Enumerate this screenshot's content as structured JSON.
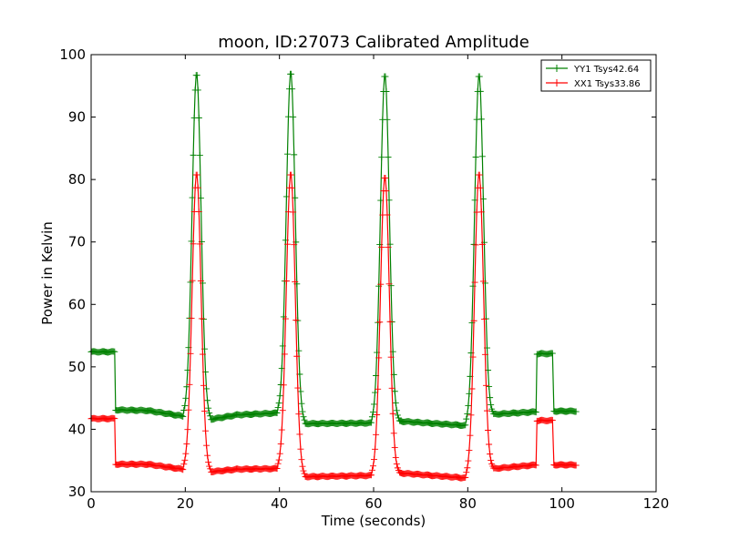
{
  "chart_data": {
    "type": "line",
    "title": "moon, ID:27073 Calibrated Amplitude",
    "xlabel": "Time (seconds)",
    "ylabel": "Power in Kelvin",
    "xlim": [
      0,
      120
    ],
    "ylim": [
      30,
      100
    ],
    "xticks": [
      0,
      20,
      40,
      60,
      80,
      100,
      120
    ],
    "yticks": [
      30,
      40,
      50,
      60,
      70,
      80,
      90,
      100
    ],
    "xtick_labels": [
      "0",
      "20",
      "40",
      "60",
      "80",
      "100",
      "120"
    ],
    "ytick_labels": [
      "30",
      "40",
      "50",
      "60",
      "70",
      "80",
      "90",
      "100"
    ],
    "grid": false,
    "legend_position": "top-right",
    "marker": "+",
    "series": [
      {
        "name": "YY1 Tsys42.64",
        "color": "#008000",
        "baseline_segments": [
          {
            "x0": 0,
            "x1": 5,
            "y0": 52.4,
            "y1": 52.4,
            "step": 0.2
          },
          {
            "x0": 5.2,
            "x1": 12,
            "y0": 43.1,
            "y1": 43.0,
            "step": 0.2
          },
          {
            "x0": 12,
            "x1": 19.5,
            "y0": 43.0,
            "y1": 42.1,
            "step": 0.2
          },
          {
            "x0": 25.5,
            "x1": 31,
            "y0": 41.6,
            "y1": 42.3,
            "step": 0.2
          },
          {
            "x0": 31,
            "x1": 39.5,
            "y0": 42.3,
            "y1": 42.6,
            "step": 0.2
          },
          {
            "x0": 45.5,
            "x1": 59.5,
            "y0": 40.9,
            "y1": 41.0,
            "step": 0.2
          },
          {
            "x0": 65.5,
            "x1": 79.5,
            "y0": 41.3,
            "y1": 40.6,
            "step": 0.2
          },
          {
            "x0": 85.5,
            "x1": 94.5,
            "y0": 42.4,
            "y1": 42.8,
            "step": 0.2
          },
          {
            "x0": 94.7,
            "x1": 98.0,
            "y0": 52.1,
            "y1": 52.1,
            "step": 0.2
          },
          {
            "x0": 98.3,
            "x1": 103,
            "y0": 42.9,
            "y1": 42.9,
            "step": 0.2
          }
        ],
        "peaks": [
          {
            "x0": 19.5,
            "x1": 25.5,
            "base_left": 42.1,
            "base_right": 41.6,
            "center": 22.4,
            "peak": 97.0
          },
          {
            "x0": 39.5,
            "x1": 45.5,
            "base_left": 42.6,
            "base_right": 40.9,
            "center": 42.4,
            "peak": 97.2
          },
          {
            "x0": 59.5,
            "x1": 65.5,
            "base_left": 41.0,
            "base_right": 41.3,
            "center": 62.4,
            "peak": 96.8
          },
          {
            "x0": 79.5,
            "x1": 85.5,
            "base_left": 40.6,
            "base_right": 42.4,
            "center": 82.4,
            "peak": 96.8
          }
        ]
      },
      {
        "name": "XX1 Tsys33.86",
        "color": "#ff0000",
        "baseline_segments": [
          {
            "x0": 0,
            "x1": 5,
            "y0": 41.7,
            "y1": 41.7,
            "step": 0.2
          },
          {
            "x0": 5.2,
            "x1": 12,
            "y0": 34.4,
            "y1": 34.4,
            "step": 0.2
          },
          {
            "x0": 12,
            "x1": 19.5,
            "y0": 34.4,
            "y1": 33.6,
            "step": 0.2
          },
          {
            "x0": 25.5,
            "x1": 31,
            "y0": 33.2,
            "y1": 33.6,
            "step": 0.2
          },
          {
            "x0": 31,
            "x1": 39.5,
            "y0": 33.6,
            "y1": 33.7,
            "step": 0.2
          },
          {
            "x0": 45.5,
            "x1": 59.5,
            "y0": 32.4,
            "y1": 32.6,
            "step": 0.2
          },
          {
            "x0": 65.5,
            "x1": 79.5,
            "y0": 33.0,
            "y1": 32.2,
            "step": 0.2
          },
          {
            "x0": 85.5,
            "x1": 94.5,
            "y0": 33.7,
            "y1": 34.3,
            "step": 0.2
          },
          {
            "x0": 94.7,
            "x1": 98.0,
            "y0": 41.4,
            "y1": 41.4,
            "step": 0.2
          },
          {
            "x0": 98.3,
            "x1": 103,
            "y0": 34.3,
            "y1": 34.3,
            "step": 0.2
          }
        ],
        "peaks": [
          {
            "x0": 19.5,
            "x1": 25.5,
            "base_left": 33.6,
            "base_right": 33.2,
            "center": 22.4,
            "peak": 81.0
          },
          {
            "x0": 39.5,
            "x1": 45.5,
            "base_left": 33.7,
            "base_right": 32.4,
            "center": 42.4,
            "peak": 81.0
          },
          {
            "x0": 59.5,
            "x1": 65.5,
            "base_left": 32.6,
            "base_right": 33.0,
            "center": 62.4,
            "peak": 80.5
          },
          {
            "x0": 79.5,
            "x1": 85.5,
            "base_left": 32.2,
            "base_right": 33.7,
            "center": 82.4,
            "peak": 81.0
          }
        ]
      }
    ]
  }
}
